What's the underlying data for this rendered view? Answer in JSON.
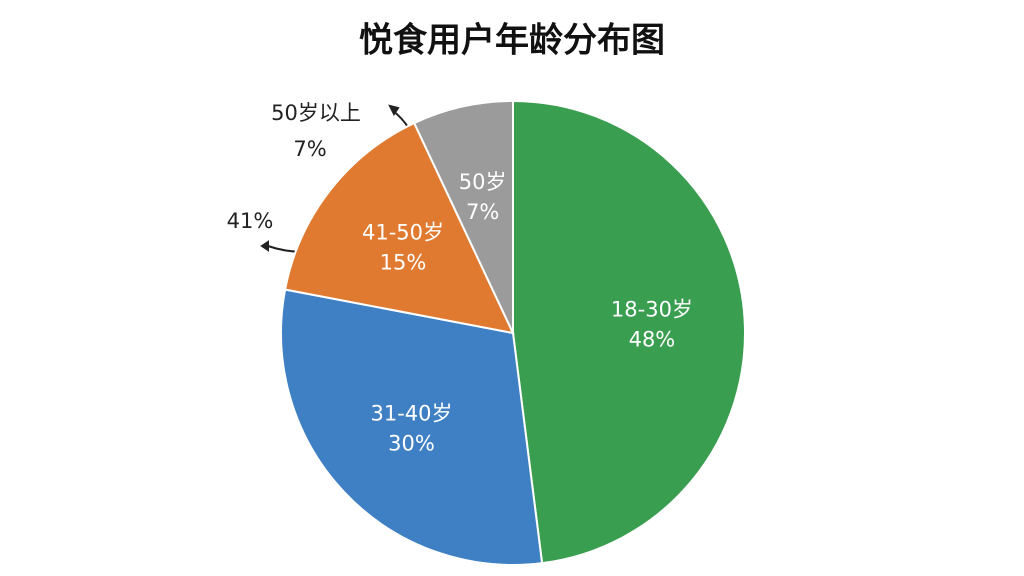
{
  "chart_data": {
    "type": "pie",
    "title": "悦食用户年龄分布图",
    "categories": [
      "18-30岁",
      "31-40岁",
      "41-50岁",
      "50岁"
    ],
    "values": [
      48,
      30,
      15,
      7
    ],
    "value_labels": [
      "48%",
      "30%",
      "15%",
      "7%"
    ],
    "colors": [
      "#3a9e50",
      "#3f80c4",
      "#e07a30",
      "#9b9b9b"
    ],
    "annotations": [
      "50岁以上",
      "7%",
      "41%"
    ]
  }
}
